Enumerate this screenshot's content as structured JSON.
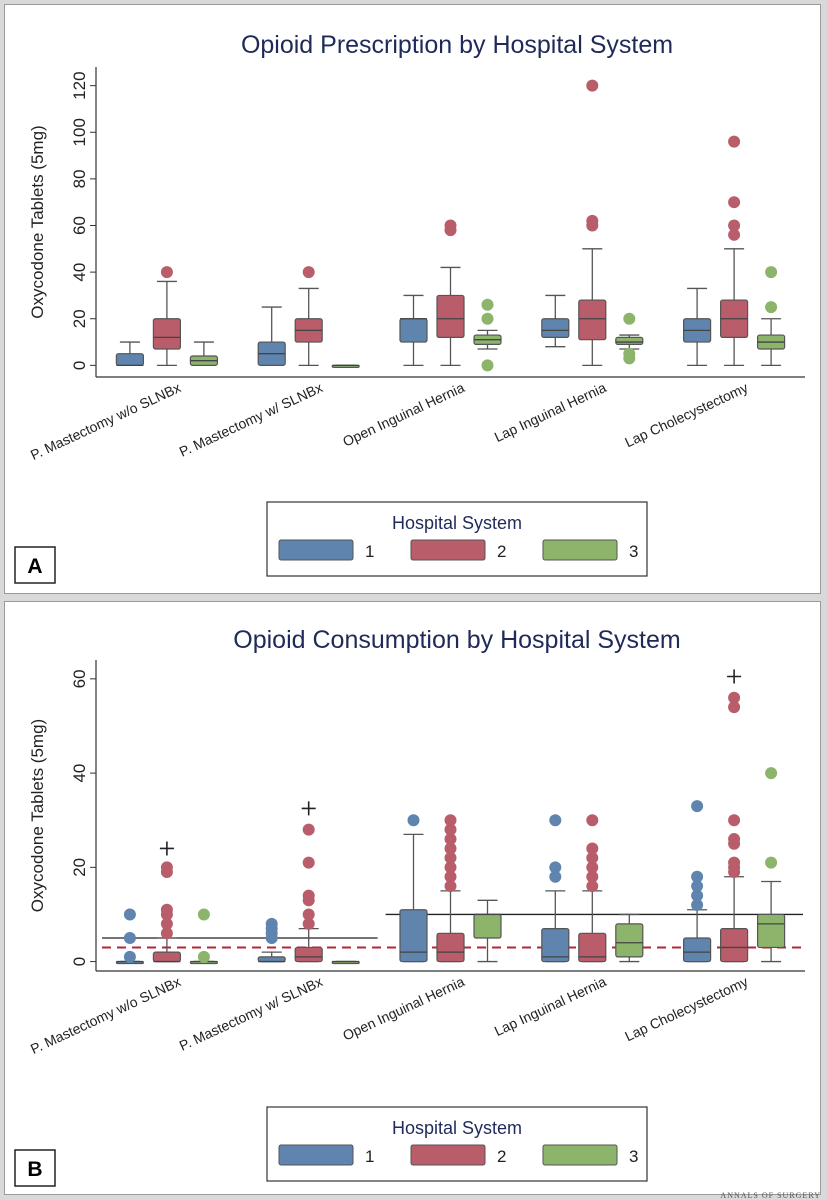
{
  "colors": {
    "g1": "#5f84ad",
    "g2": "#b85d69",
    "g3": "#8db46b",
    "title": "#1f2a5a",
    "whisker": "#555555"
  },
  "legend": {
    "title": "Hospital System",
    "labels": [
      "1",
      "2",
      "3"
    ]
  },
  "watermark": "ANNALS OF SURGERY",
  "chart_data": [
    {
      "panel": "A",
      "type": "boxplot",
      "title": "Opioid Prescription by Hospital System",
      "ylabel": "Oxycodone Tablets (5mg)",
      "ylim": [
        -5,
        128
      ],
      "yticks": [
        0,
        20,
        40,
        60,
        80,
        100,
        120
      ],
      "categories": [
        "P. Mastectomy w/o SLNBx",
        "P. Mastectomy w/ SLNBx",
        "Open Inguinal Hernia",
        "Lap Inguinal Hernia",
        "Lap Cholecystectomy"
      ],
      "series": [
        {
          "name": "1",
          "boxes": [
            {
              "min": 0,
              "q1": 0,
              "med": 0,
              "q3": 5,
              "max": 10,
              "out": []
            },
            {
              "min": 0,
              "q1": 0,
              "med": 5,
              "q3": 10,
              "max": 25,
              "out": []
            },
            {
              "min": 0,
              "q1": 10,
              "med": 20,
              "q3": 20,
              "max": 30,
              "out": []
            },
            {
              "min": 8,
              "q1": 12,
              "med": 15,
              "q3": 20,
              "max": 30,
              "out": []
            },
            {
              "min": 0,
              "q1": 10,
              "med": 15,
              "q3": 20,
              "max": 33,
              "out": []
            }
          ]
        },
        {
          "name": "2",
          "boxes": [
            {
              "min": 0,
              "q1": 7,
              "med": 12,
              "q3": 20,
              "max": 36,
              "out": [
                40
              ]
            },
            {
              "min": 0,
              "q1": 10,
              "med": 15,
              "q3": 20,
              "max": 33,
              "out": [
                40
              ]
            },
            {
              "min": 0,
              "q1": 12,
              "med": 20,
              "q3": 30,
              "max": 42,
              "out": [
                58,
                60
              ]
            },
            {
              "min": 0,
              "q1": 11,
              "med": 20,
              "q3": 28,
              "max": 50,
              "out": [
                60,
                62,
                120
              ]
            },
            {
              "min": 0,
              "q1": 12,
              "med": 20,
              "q3": 28,
              "max": 50,
              "out": [
                56,
                60,
                70,
                96
              ]
            }
          ]
        },
        {
          "name": "3",
          "boxes": [
            {
              "min": 0,
              "q1": 0,
              "med": 2,
              "q3": 4,
              "max": 10,
              "out": []
            },
            {
              "min": 0,
              "q1": 0,
              "med": 0,
              "q3": 0,
              "max": 0,
              "out": []
            },
            {
              "min": 7,
              "q1": 9,
              "med": 11,
              "q3": 13,
              "max": 15,
              "out": [
                0,
                20,
                26
              ]
            },
            {
              "min": 7,
              "q1": 9,
              "med": 10,
              "q3": 12,
              "max": 13,
              "out": [
                3,
                5,
                20
              ]
            },
            {
              "min": 0,
              "q1": 7,
              "med": 10,
              "q3": 13,
              "max": 20,
              "out": [
                25,
                40
              ]
            }
          ]
        }
      ]
    },
    {
      "panel": "B",
      "type": "boxplot",
      "title": "Opioid Consumption by Hospital System",
      "ylabel": "Oxycodone Tablets (5mg)",
      "ylim": [
        -2,
        64
      ],
      "yticks": [
        0,
        20,
        40,
        60
      ],
      "categories": [
        "P. Mastectomy w/o SLNBx",
        "P. Mastectomy w/ SLNBx",
        "Open Inguinal Hernia",
        "Lap Inguinal Hernia",
        "Lap Cholecystectomy"
      ],
      "reference_lines": {
        "solid": [
          {
            "from": 0,
            "to": 1,
            "value": 5
          },
          {
            "from": 2,
            "to": 4,
            "value": 10
          }
        ],
        "dashed_overall": 3
      },
      "series": [
        {
          "name": "1",
          "boxes": [
            {
              "min": 0,
              "q1": 0,
              "med": 0,
              "q3": 0,
              "max": 0,
              "out": [
                1,
                5,
                10
              ]
            },
            {
              "min": 0,
              "q1": 0,
              "med": 0,
              "q3": 1,
              "max": 2,
              "out": [
                5,
                6,
                7,
                8
              ]
            },
            {
              "min": 0,
              "q1": 0,
              "med": 2,
              "q3": 11,
              "max": 27,
              "out": [
                30
              ]
            },
            {
              "min": 0,
              "q1": 0,
              "med": 1,
              "q3": 7,
              "max": 15,
              "out": [
                18,
                20,
                30
              ]
            },
            {
              "min": 0,
              "q1": 0,
              "med": 2,
              "q3": 5,
              "max": 11,
              "out": [
                12,
                14,
                16,
                18,
                33
              ]
            }
          ]
        },
        {
          "name": "2",
          "boxes": [
            {
              "min": 0,
              "q1": 0,
              "med": 0,
              "q3": 2,
              "max": 5,
              "out": [
                6,
                8,
                10,
                11,
                19,
                20
              ],
              "plus": 24
            },
            {
              "min": 0,
              "q1": 0,
              "med": 1,
              "q3": 3,
              "max": 7,
              "out": [
                8,
                10,
                13,
                14,
                21,
                28
              ],
              "plus": 32.5
            },
            {
              "min": 0,
              "q1": 0,
              "med": 2,
              "q3": 6,
              "max": 15,
              "out": [
                16,
                18,
                20,
                22,
                24,
                26,
                28,
                30
              ]
            },
            {
              "min": 0,
              "q1": 0,
              "med": 1,
              "q3": 6,
              "max": 15,
              "out": [
                16,
                18,
                20,
                22,
                24,
                30
              ]
            },
            {
              "min": 0,
              "q1": 0,
              "med": 3,
              "q3": 7,
              "max": 18,
              "out": [
                19,
                20,
                21,
                25,
                26,
                30,
                54,
                56
              ],
              "plus": 60.5
            }
          ]
        },
        {
          "name": "3",
          "boxes": [
            {
              "min": 0,
              "q1": 0,
              "med": 0,
              "q3": 0,
              "max": 0,
              "out": [
                1,
                10
              ]
            },
            {
              "min": 0,
              "q1": 0,
              "med": 0,
              "q3": 0,
              "max": 0,
              "out": []
            },
            {
              "min": 0,
              "q1": 5,
              "med": 10,
              "q3": 10,
              "max": 13,
              "out": []
            },
            {
              "min": 0,
              "q1": 1,
              "med": 4,
              "q3": 8,
              "max": 10,
              "out": []
            },
            {
              "min": 0,
              "q1": 3,
              "med": 8,
              "q3": 10,
              "max": 17,
              "out": [
                21,
                40
              ]
            }
          ]
        }
      ]
    }
  ]
}
